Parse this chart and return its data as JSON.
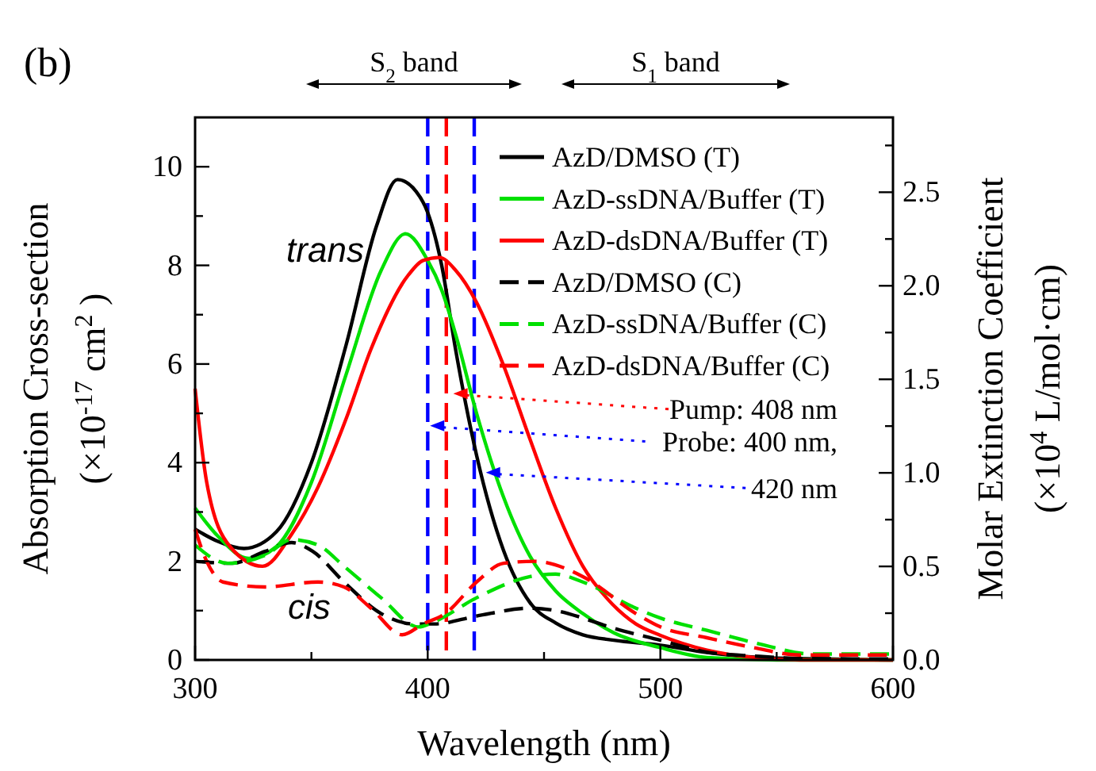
{
  "chart_data": {
    "type": "line",
    "title": "(b)",
    "xlabel": "Wavelength (nm)",
    "ylabel": "Absorption  Cross-section\n(×10$^{-17}$cm$^{2}$)",
    "y2label": "Molar Extinction Coefficient\n(×10$^{4}$ L/mol·cm)",
    "xlim": [
      300,
      600
    ],
    "xticks": [
      300,
      {
        "value": 350,
        "label": null
      },
      400,
      {
        "value": 450,
        "label": null
      },
      500,
      {
        "value": 550,
        "label": null
      },
      600
    ],
    "ylim": [
      0,
      11
    ],
    "yticks": [
      0,
      {
        "value": 1,
        "label": null
      },
      2,
      {
        "value": 3,
        "label": null
      },
      4,
      {
        "value": 5,
        "label": null
      },
      6,
      {
        "value": 7,
        "label": null
      },
      8,
      {
        "value": 9,
        "label": null
      },
      10
    ],
    "y2lim": [
      0,
      2.9
    ],
    "y2ticks": [
      {
        "value": 0,
        "label": "0.0"
      },
      {
        "value": 0.25,
        "label": null
      },
      {
        "value": 0.5,
        "label": "0.5"
      },
      {
        "value": 0.75,
        "label": null
      },
      {
        "value": 1,
        "label": "1.0"
      },
      {
        "value": 1.25,
        "label": null
      },
      {
        "value": 1.5,
        "label": "1.5"
      },
      {
        "value": 1.75,
        "label": null
      },
      {
        "value": 2,
        "label": "2.0"
      },
      {
        "value": 2.25,
        "label": null
      },
      {
        "value": 2.5,
        "label": "2.5"
      },
      {
        "value": 2.75,
        "label": null
      }
    ],
    "grid": false,
    "legend": "top right",
    "series": [
      {
        "name": "AzD/DMSO (T)",
        "color": "#000000",
        "line_style": "solid",
        "x": [
          300,
          310,
          321,
          335,
          350,
          365,
          378,
          387,
          395,
          400,
          406,
          412,
          421,
          432.6,
          444,
          455,
          466.7,
          480,
          500,
          520,
          543,
          570,
          600
        ],
        "values": [
          2.65,
          2.4,
          2.26,
          2.6,
          4.0,
          6.4,
          8.8,
          9.74,
          9.5,
          9.07,
          8.0,
          6.29,
          4.15,
          2.22,
          1.16,
          0.75,
          0.51,
          0.4,
          0.3,
          0.15,
          0.05,
          0.02,
          0
        ]
      },
      {
        "name": "AzD-ssDNA/Buffer (T)",
        "color": "#00e000",
        "line_style": "solid",
        "x": [
          300,
          310,
          323,
          335,
          350,
          365,
          380,
          390.4,
          400,
          406,
          412,
          421,
          432.6,
          444,
          455,
          466.7,
          480,
          500,
          520,
          550,
          600
        ],
        "values": [
          3.08,
          2.5,
          2.06,
          2.3,
          3.6,
          5.8,
          7.9,
          8.64,
          8.1,
          7.5,
          6.6,
          5.0,
          3.3,
          2.1,
          1.4,
          0.94,
          0.55,
          0.25,
          0.05,
          0,
          0
        ]
      },
      {
        "name": "AzD-dsDNA/Buffer (T)",
        "color": "#ff0000",
        "line_style": "solid",
        "x": [
          300,
          305,
          315,
          329,
          341.5,
          352.8,
          365,
          375.6,
          391.6,
          398,
          405,
          412,
          421,
          432.6,
          444,
          455,
          466.7,
          478,
          489.5,
          500,
          520,
          540,
          560,
          600
        ],
        "values": [
          5.5,
          3.6,
          2.3,
          1.9,
          2.55,
          3.5,
          4.9,
          6.3,
          7.8,
          8.1,
          8.16,
          7.9,
          7.25,
          5.97,
          4.47,
          3.08,
          1.9,
          1.2,
          0.73,
          0.5,
          0.2,
          0.05,
          0,
          0
        ]
      },
      {
        "name": "AzD/DMSO (C)",
        "color": "#000000",
        "line_style": "dashed",
        "x": [
          300,
          316,
          330,
          341.5,
          350.6,
          364,
          380,
          394,
          403,
          421,
          444,
          455,
          466.7,
          478,
          500,
          520,
          540,
          560,
          600
        ],
        "values": [
          2.0,
          1.96,
          2.2,
          2.38,
          2.2,
          1.58,
          0.94,
          0.73,
          0.73,
          0.89,
          1.05,
          1.0,
          0.85,
          0.67,
          0.4,
          0.16,
          0.08,
          0.03,
          0.02
        ]
      },
      {
        "name": "AzD-ssDNA/Buffer (C)",
        "color": "#00e000",
        "line_style": "dashed",
        "x": [
          300,
          314,
          330,
          341.5,
          352.8,
          364,
          380,
          396,
          403,
          421,
          444,
          455,
          466.7,
          489.5,
          500,
          520,
          543,
          565,
          600
        ],
        "values": [
          2.33,
          1.96,
          2.12,
          2.44,
          2.33,
          1.9,
          1.26,
          0.67,
          0.78,
          1.26,
          1.69,
          1.74,
          1.58,
          1.05,
          0.85,
          0.6,
          0.32,
          0.12,
          0.12
        ]
      },
      {
        "name": "AzD-dsDNA/Buffer (C)",
        "color": "#ff0000",
        "line_style": "dashed",
        "x": [
          300,
          305,
          312,
          330,
          352.8,
          364,
          375.6,
          389,
          398,
          407.5,
          421,
          432.6,
          446,
          466.7,
          489.5,
          500,
          520,
          540,
          560,
          600
        ],
        "values": [
          2.65,
          2.0,
          1.58,
          1.48,
          1.58,
          1.48,
          1.05,
          0.51,
          0.73,
          0.94,
          1.58,
          1.96,
          2.0,
          1.69,
          0.94,
          0.67,
          0.45,
          0.25,
          0.1,
          0.1
        ]
      }
    ],
    "ref_lines": [
      {
        "axis": "x",
        "value": 400,
        "color": "#0000ff",
        "line_style": "dashed"
      },
      {
        "axis": "x",
        "value": 408,
        "color": "#ff0000",
        "line_style": "dashed"
      },
      {
        "axis": "x",
        "value": 420,
        "color": "#0000ff",
        "line_style": "dashed"
      }
    ],
    "annotations": [
      "S$_{2}$ band",
      "S$_{1}$ band",
      "trans",
      "cis",
      {
        "text": "Pump: 408 nm",
        "x": 411,
        "y": 5.4
      },
      {
        "text": "Probe: 400 nm,",
        "x": 401,
        "y": 4.75
      },
      {
        "text": "420 nm",
        "x": 425,
        "y": 3.8
      }
    ]
  }
}
